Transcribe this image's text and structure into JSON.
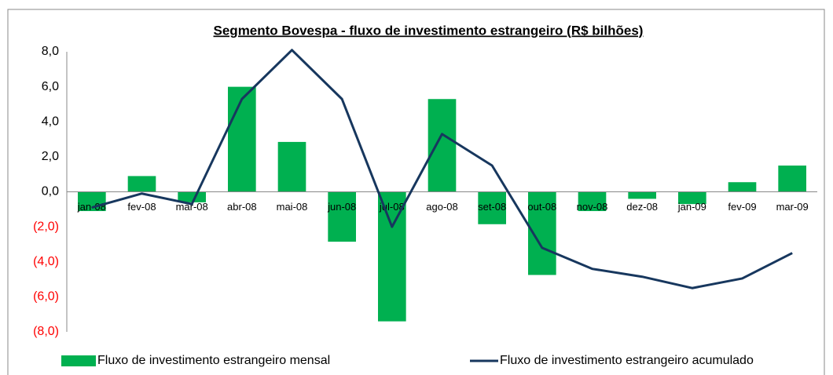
{
  "chart_data": {
    "type": "bar_line",
    "title": "Segmento Bovespa - fluxo de investimento estrangeiro (R$ bilhões)",
    "categories": [
      "jan-08",
      "fev-08",
      "mar-08",
      "abr-08",
      "mai-08",
      "jun-08",
      "jul-08",
      "ago-08",
      "set-08",
      "out-08",
      "nov-08",
      "dez-08",
      "jan-09",
      "fev-09",
      "mar-09"
    ],
    "series": [
      {
        "name": "Fluxo de investimento estrangeiro mensal",
        "type": "bar",
        "color": "#00b050",
        "values": [
          -1.1,
          0.9,
          -0.6,
          6.0,
          2.85,
          -2.85,
          -7.4,
          5.3,
          -1.85,
          -4.75,
          -1.1,
          -0.4,
          -0.7,
          0.55,
          1.5
        ]
      },
      {
        "name": "Fluxo de investimento estrangeiro acumulado",
        "type": "line",
        "color": "#17375e",
        "values": [
          -0.9,
          -0.1,
          -0.7,
          5.3,
          8.1,
          5.3,
          -2.0,
          3.3,
          1.5,
          -3.2,
          -4.4,
          -4.85,
          -5.5,
          -4.95,
          -3.5
        ]
      }
    ],
    "ylim": [
      -8,
      8
    ],
    "yticks": [
      {
        "value": -8,
        "label": "(8,0)"
      },
      {
        "value": -6,
        "label": "(6,0)"
      },
      {
        "value": -4,
        "label": "(4,0)"
      },
      {
        "value": -2,
        "label": "(2,0)"
      },
      {
        "value": 0,
        "label": "0,0"
      },
      {
        "value": 2,
        "label": "2,0"
      },
      {
        "value": 4,
        "label": "4,0"
      },
      {
        "value": 6,
        "label": "6,0"
      },
      {
        "value": 8,
        "label": "8,0"
      }
    ],
    "negative_tick_color": "#ff0000",
    "grid": false,
    "legend": "bottom"
  }
}
